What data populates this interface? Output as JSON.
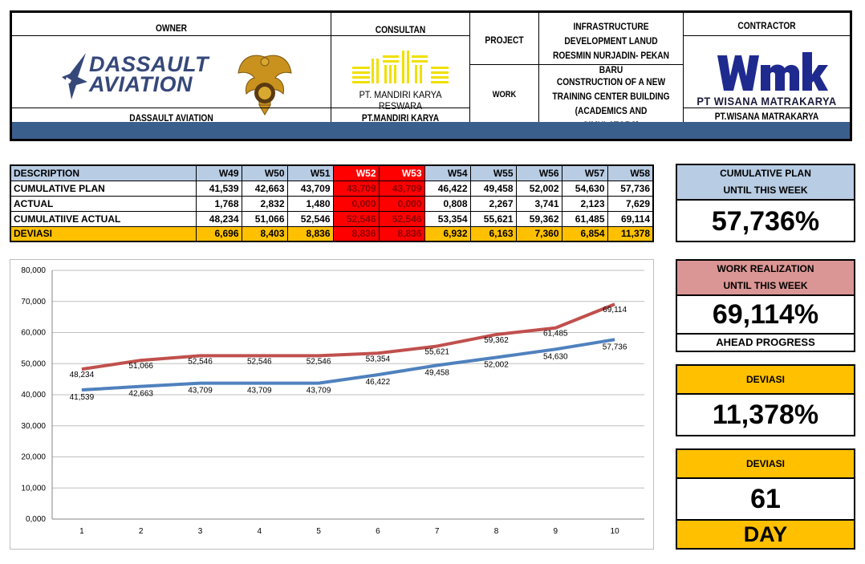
{
  "header": {
    "owner_label": "OWNER",
    "owner_logo_text_line1": "DASSAULT",
    "owner_logo_text_line2": "AVIATION",
    "owner_name": "DASSAULT AVIATION",
    "consultant_label": "CONSULTAN",
    "consultant_logo_text": "PT. MANDIRI KARYA RESWARA",
    "consultant_name": "PT.MANDIRI KARYA RESWARA",
    "project_label": "PROJECT",
    "project_value": "INFRASTRUCTURE DEVELOPMENT LANUD ROESMIN NURJADIN- PEKAN BARU",
    "work_label": "WORK",
    "work_value": "CONSTRUCTION OF A NEW TRAINING CENTER BUILDING (ACADEMICS AND SIMULATORS)",
    "contractor_label": "CONTRACTOR",
    "contractor_logo_text": "wmk",
    "contractor_logo_subtext": "PT WISANA MATRAKARYA",
    "contractor_name": "PT.WISANA MATRAKARYA"
  },
  "table": {
    "columns": [
      "DESCRIPTION",
      "W49",
      "W50",
      "W51",
      "W52",
      "W53",
      "W54",
      "W55",
      "W56",
      "W57",
      "W58"
    ],
    "rows": [
      {
        "label": "CUMULATIVE PLAN",
        "values": [
          "41,539",
          "42,663",
          "43,709",
          "43,709",
          "43,709",
          "46,422",
          "49,458",
          "52,002",
          "54,630",
          "57,736"
        ]
      },
      {
        "label": "ACTUAL",
        "values": [
          "1,768",
          "2,832",
          "1,480",
          "0,000",
          "0,000",
          "0,808",
          "2,267",
          "3,741",
          "2,123",
          "7,629"
        ]
      },
      {
        "label": "CUMULATIIVE ACTUAL",
        "values": [
          "48,234",
          "51,066",
          "52,546",
          "52,546",
          "52,546",
          "53,354",
          "55,621",
          "59,362",
          "61,485",
          "69,114"
        ]
      },
      {
        "label": "DEVIASI",
        "values": [
          "6,696",
          "8,403",
          "8,836",
          "8,836",
          "8,836",
          "6,932",
          "6,163",
          "7,360",
          "6,854",
          "11,378"
        ]
      }
    ]
  },
  "chart_data": {
    "type": "line",
    "x": [
      1,
      2,
      3,
      4,
      5,
      6,
      7,
      8,
      9,
      10
    ],
    "y_ticks": [
      "0,000",
      "10,000",
      "20,000",
      "30,000",
      "40,000",
      "50,000",
      "60,000",
      "70,000",
      "80,000"
    ],
    "ylim": [
      0,
      80
    ],
    "grid": true,
    "series": [
      {
        "color": "#c0504d",
        "values": [
          48.234,
          51.066,
          52.546,
          52.546,
          52.546,
          53.354,
          55.621,
          59.362,
          61.485,
          69.114
        ],
        "labels": [
          "48,234",
          "51,066",
          "52,546",
          "52,546",
          "52,546",
          "53,354",
          "55,621",
          "59,362",
          "61,485",
          "69,114"
        ]
      },
      {
        "color": "#4f81bd",
        "values": [
          41.539,
          42.663,
          43.709,
          43.709,
          43.709,
          46.422,
          49.458,
          52.002,
          54.63,
          57.736
        ],
        "labels": [
          "41,539",
          "42,663",
          "43,709",
          "43,709",
          "43,709",
          "46,422",
          "49,458",
          "52,002",
          "54,630",
          "57,736"
        ]
      }
    ]
  },
  "panels": {
    "cumulative_plan": {
      "line1": "CUMULATIVE PLAN",
      "line2": "UNTIL THIS WEEK",
      "value": "57,736%"
    },
    "work_realization": {
      "line1": "WORK REALIZATION",
      "line2": "UNTIL THIS WEEK",
      "value": "69,114%",
      "status": "AHEAD PROGRESS"
    },
    "deviasi_percent": {
      "label": "DEVIASI",
      "value": "11,378%"
    },
    "deviasi_days": {
      "label": "DEVIASI",
      "value": "61",
      "unit": "DAY"
    }
  },
  "colors": {
    "header_band": "#3b5f8c",
    "table_header": "#b8cce4",
    "deviation_row": "#ffc000",
    "holiday_weeks": "#ff0000",
    "actual_line": "#c0504d",
    "plan_line": "#4f81bd"
  }
}
